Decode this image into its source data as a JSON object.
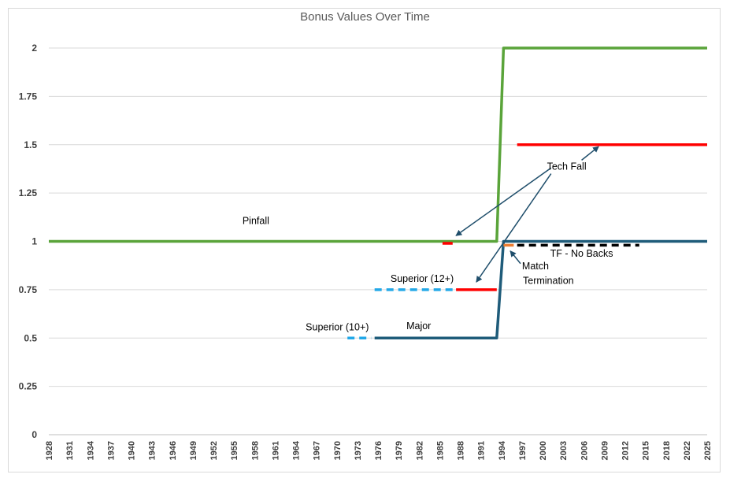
{
  "chart_data": {
    "type": "line",
    "title": "Bonus Values Over Time",
    "xlim": [
      1928,
      2025
    ],
    "ylim": [
      0,
      2
    ],
    "y_ticks": [
      "0",
      "0.25",
      "0.5",
      "0.75",
      "1",
      "1.25",
      "1.5",
      "1.75",
      "2"
    ],
    "x_ticks": [
      "1928",
      "1931",
      "1934",
      "1937",
      "1940",
      "1943",
      "1946",
      "1949",
      "1952",
      "1955",
      "1958",
      "1961",
      "1964",
      "1967",
      "1970",
      "1973",
      "1976",
      "1979",
      "1982",
      "1985",
      "1988",
      "1991",
      "1994",
      "1997",
      "2000",
      "2003",
      "2006",
      "2009",
      "2012",
      "2015",
      "2018",
      "2022",
      "2025"
    ],
    "grid": true,
    "series": [
      {
        "color": "#5aa43a",
        "dash": "solid",
        "points": [
          [
            1928,
            1
          ],
          [
            1994,
            1
          ],
          [
            1995,
            2
          ],
          [
            2025,
            2
          ]
        ]
      },
      {
        "color": "#1f5c7a",
        "dash": "solid",
        "points": [
          [
            1976,
            0.5
          ],
          [
            1994,
            0.5
          ],
          [
            1995,
            1
          ],
          [
            2025,
            1
          ]
        ]
      },
      {
        "color": "#ff0000",
        "dash": "solid",
        "points": [
          [
            1986,
            0.99
          ],
          [
            1987.5,
            0.99
          ]
        ]
      },
      {
        "color": "#ff0000",
        "dash": "solid",
        "points": [
          [
            1988,
            0.75
          ],
          [
            1994,
            0.75
          ]
        ]
      },
      {
        "color": "#ff0000",
        "dash": "solid",
        "points": [
          [
            1997,
            1.5
          ],
          [
            2025,
            1.5
          ]
        ]
      },
      {
        "color": "#22a8e8",
        "dash": "dashed",
        "points": [
          [
            1972,
            0.5
          ],
          [
            1975.5,
            0.5
          ]
        ]
      },
      {
        "color": "#22a8e8",
        "dash": "dashed",
        "points": [
          [
            1976,
            0.75
          ],
          [
            1987.5,
            0.75
          ]
        ]
      },
      {
        "color": "#000000",
        "dash": "dashed",
        "points": [
          [
            1997,
            0.98
          ],
          [
            2015,
            0.98
          ]
        ]
      },
      {
        "color": "#ed7d31",
        "dash": "solid",
        "points": [
          [
            1995,
            0.98
          ],
          [
            1996.5,
            0.98
          ]
        ]
      }
    ],
    "annotations": [
      {
        "text": "Pinfall",
        "x": 1958.5,
        "y": 1.09
      },
      {
        "text": "Tech Fall",
        "x": 2004.3,
        "y": 1.37
      },
      {
        "text": "TF - No Backs",
        "x": 2006.5,
        "y": 0.92
      },
      {
        "text": "Match",
        "x": 1999.7,
        "y": 0.855
      },
      {
        "text": "Termination",
        "x": 2001.6,
        "y": 0.78
      },
      {
        "text": "Superior (12+)",
        "x": 1983,
        "y": 0.79
      },
      {
        "text": "Superior (10+)",
        "x": 1970.5,
        "y": 0.54
      },
      {
        "text": "Major",
        "x": 1982.5,
        "y": 0.545
      }
    ],
    "arrows": [
      {
        "from": [
          2002,
          1.38
        ],
        "to": [
          1988,
          1.03
        ]
      },
      {
        "from": [
          2002,
          1.35
        ],
        "to": [
          1991,
          0.79
        ]
      },
      {
        "from": [
          2006.5,
          1.42
        ],
        "to": [
          2009,
          1.49
        ]
      },
      {
        "from": [
          1997.5,
          0.885
        ],
        "to": [
          1996,
          0.95
        ]
      }
    ]
  }
}
